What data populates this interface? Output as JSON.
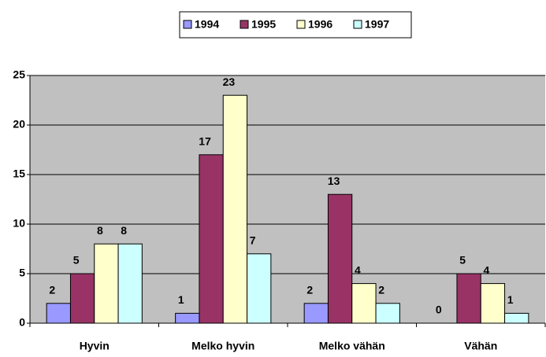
{
  "chart_data": {
    "type": "bar",
    "categories": [
      "Hyvin",
      "Melko hyvin",
      "Melko vähän",
      "Vähän"
    ],
    "series": [
      {
        "name": "1994",
        "color": "#9999ff",
        "values": [
          2,
          1,
          2,
          0
        ]
      },
      {
        "name": "1995",
        "color": "#993366",
        "values": [
          5,
          17,
          13,
          5
        ]
      },
      {
        "name": "1996",
        "color": "#ffffcc",
        "values": [
          8,
          23,
          4,
          4
        ]
      },
      {
        "name": "1997",
        "color": "#ccffff",
        "values": [
          8,
          7,
          2,
          1
        ]
      }
    ],
    "ylim": [
      0,
      25
    ],
    "yticks": [
      0,
      5,
      10,
      15,
      20,
      25
    ],
    "grid": true,
    "legend": "top"
  }
}
